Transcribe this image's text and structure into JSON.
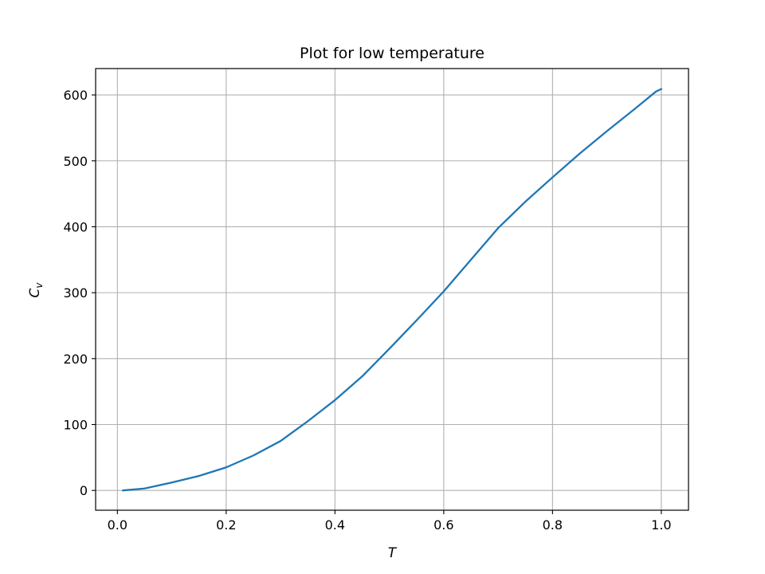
{
  "chart_data": {
    "type": "line",
    "title": "Plot for low temperature",
    "xlabel": "T",
    "ylabel_main": "C",
    "ylabel_sub": "v",
    "xlim": [
      -0.04,
      1.05
    ],
    "ylim": [
      -30,
      640
    ],
    "xticks": [
      0.0,
      0.2,
      0.4,
      0.6,
      0.8,
      1.0
    ],
    "xtick_labels": [
      "0.0",
      "0.2",
      "0.4",
      "0.6",
      "0.8",
      "1.0"
    ],
    "yticks": [
      0,
      100,
      200,
      300,
      400,
      500,
      600
    ],
    "ytick_labels": [
      "0",
      "100",
      "200",
      "300",
      "400",
      "500",
      "600"
    ],
    "grid": true,
    "color": "#1f77b4",
    "series": [
      {
        "x": [
          0.01,
          0.05,
          0.1,
          0.15,
          0.2,
          0.25,
          0.3,
          0.35,
          0.4,
          0.45,
          0.5,
          0.55,
          0.6,
          0.65,
          0.7,
          0.75,
          0.8,
          0.85,
          0.9,
          0.95,
          0.99,
          1.0
        ],
        "y": [
          0,
          3,
          12,
          22,
          35,
          53,
          75,
          105,
          137,
          173,
          215,
          258,
          302,
          350,
          398,
          438,
          475,
          511,
          545,
          578,
          605,
          609
        ]
      }
    ]
  }
}
